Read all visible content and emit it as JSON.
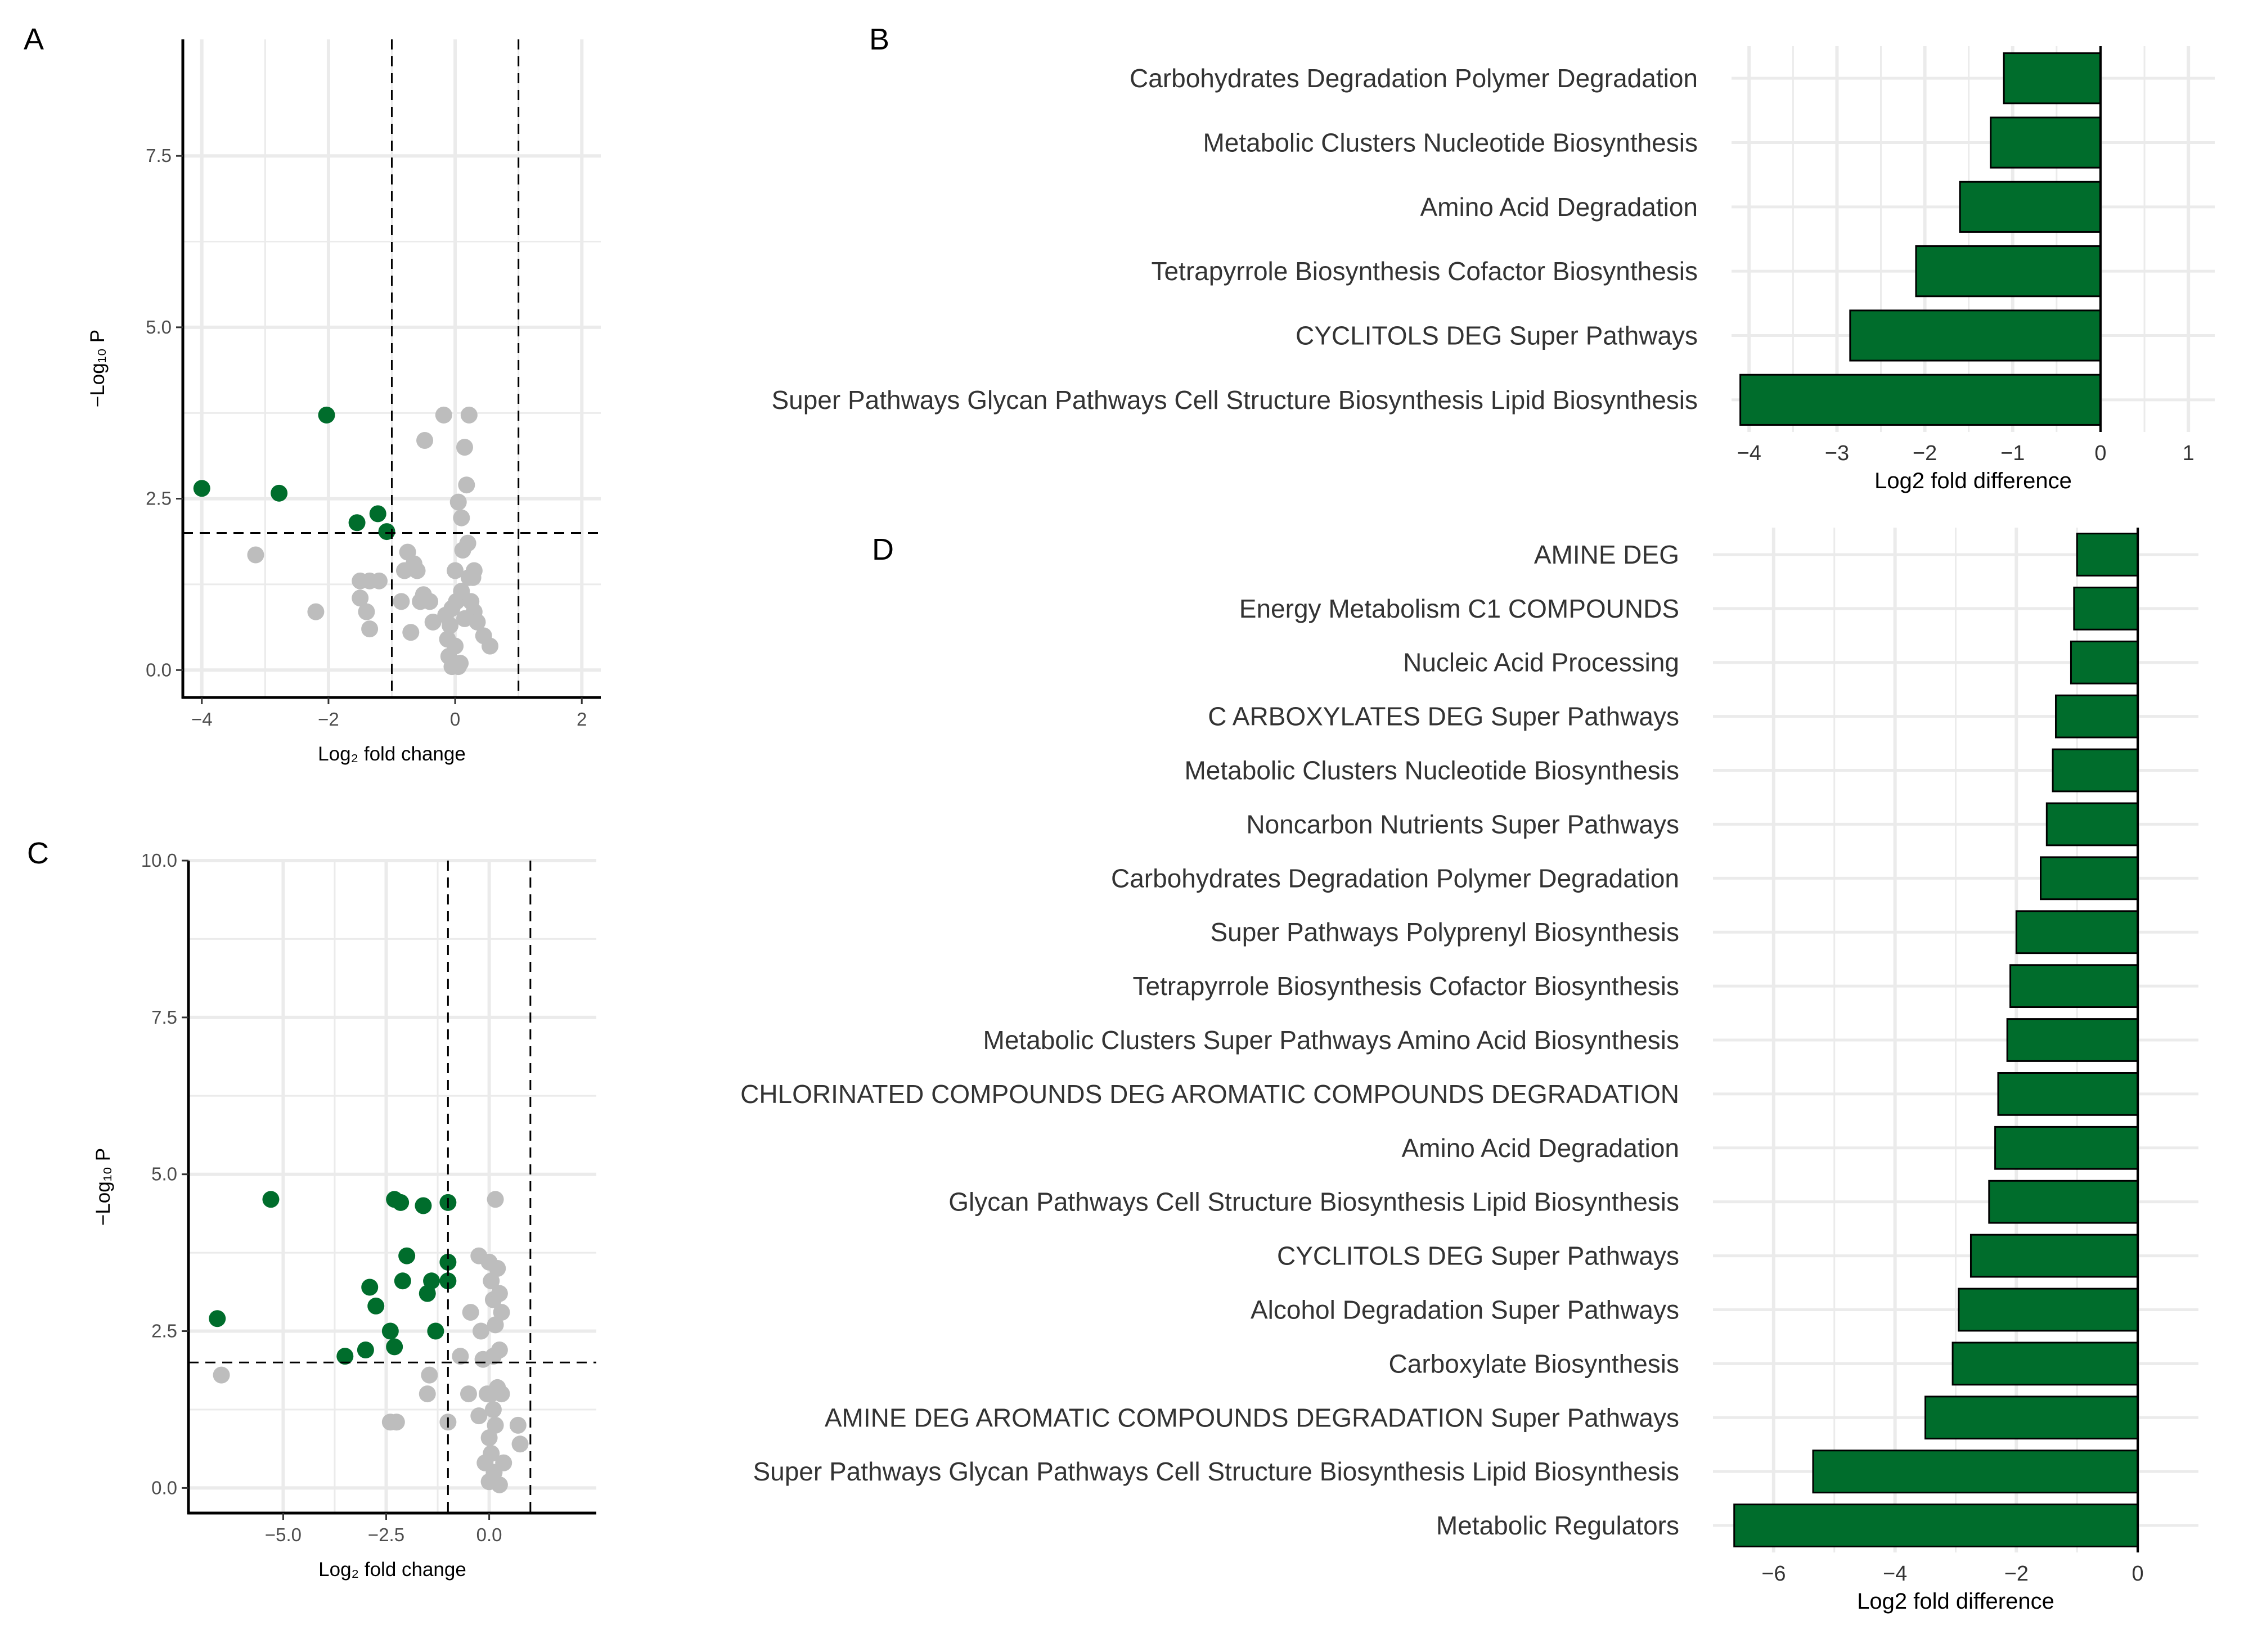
{
  "colors": {
    "significant": "#006d2c",
    "nonsignificant": "#bdbdbd",
    "bar_fill": "#006d2c",
    "bar_stroke": "#000000",
    "grid": "#ebebeb"
  },
  "chart_data": [
    {
      "panel": "A",
      "type": "scatter",
      "xlabel": "Log₂ fold change",
      "ylabel": "−Log₁₀ P",
      "xlim": [
        -4.3,
        2.3
      ],
      "ylim": [
        -0.4,
        9.2
      ],
      "xticks": [
        -4,
        -2,
        0,
        2
      ],
      "xtick_labels": [
        "−4",
        "−2",
        "0",
        "2"
      ],
      "yticks": [
        0,
        2.5,
        5,
        7.5
      ],
      "ytick_labels": [
        "0.0",
        "2.5",
        "5.0",
        "7.5"
      ],
      "thresholds": {
        "x": [
          -1,
          1
        ],
        "y": 2
      },
      "grid": true,
      "series": [
        {
          "role": "significant",
          "points": [
            [
              -4.0,
              2.65
            ],
            [
              -2.78,
              2.58
            ],
            [
              -2.03,
              3.72
            ],
            [
              -1.55,
              2.15
            ],
            [
              -1.22,
              2.28
            ],
            [
              -1.08,
              2.02
            ]
          ]
        },
        {
          "role": "nonsignificant",
          "points": [
            [
              -3.15,
              1.68
            ],
            [
              -2.2,
              0.85
            ],
            [
              -1.5,
              1.3
            ],
            [
              -1.5,
              1.05
            ],
            [
              -1.4,
              0.85
            ],
            [
              -1.35,
              1.3
            ],
            [
              -1.35,
              0.6
            ],
            [
              -1.2,
              1.3
            ],
            [
              -0.85,
              1.0
            ],
            [
              -0.8,
              1.45
            ],
            [
              -0.75,
              1.72
            ],
            [
              -0.7,
              0.55
            ],
            [
              -0.65,
              1.55
            ],
            [
              -0.6,
              1.45
            ],
            [
              -0.55,
              1.0
            ],
            [
              -0.5,
              1.1
            ],
            [
              -0.48,
              3.35
            ],
            [
              -0.4,
              1.0
            ],
            [
              -0.35,
              0.7
            ],
            [
              -0.18,
              3.72
            ],
            [
              -0.15,
              0.8
            ],
            [
              -0.12,
              0.45
            ],
            [
              -0.1,
              0.2
            ],
            [
              -0.08,
              0.65
            ],
            [
              -0.05,
              0.9
            ],
            [
              -0.05,
              0.05
            ],
            [
              0.0,
              0.35
            ],
            [
              0.0,
              1.45
            ],
            [
              0.02,
              1.0
            ],
            [
              0.05,
              2.45
            ],
            [
              0.05,
              0.05
            ],
            [
              0.08,
              0.1
            ],
            [
              0.1,
              2.22
            ],
            [
              0.1,
              1.15
            ],
            [
              0.12,
              1.75
            ],
            [
              0.15,
              0.75
            ],
            [
              0.15,
              3.25
            ],
            [
              0.18,
              2.7
            ],
            [
              0.2,
              1.85
            ],
            [
              0.22,
              3.72
            ],
            [
              0.22,
              1.35
            ],
            [
              0.25,
              1.0
            ],
            [
              0.28,
              1.35
            ],
            [
              0.3,
              1.45
            ],
            [
              0.3,
              0.85
            ],
            [
              0.35,
              0.7
            ],
            [
              0.45,
              0.5
            ],
            [
              0.55,
              0.35
            ]
          ]
        }
      ]
    },
    {
      "panel": "B",
      "type": "bar",
      "orientation": "horizontal",
      "xlabel": "Log2 fold difference",
      "xlim": [
        -4.2,
        1.3
      ],
      "xticks": [
        -4,
        -3,
        -2,
        -1,
        0,
        1
      ],
      "xtick_labels": [
        "−4",
        "−3",
        "−2",
        "−1",
        "0",
        "1"
      ],
      "grid": true,
      "categories": [
        "Carbohydrates Degradation Polymer Degradation",
        "Metabolic Clusters Nucleotide Biosynthesis",
        "Amino Acid Degradation",
        "Tetrapyrrole Biosynthesis Cofactor Biosynthesis",
        "CYCLITOLS DEG Super Pathways",
        "Super Pathways Glycan Pathways Cell Structure Biosynthesis Lipid Biosynthesis"
      ],
      "values": [
        -1.1,
        -1.25,
        -1.6,
        -2.1,
        -2.85,
        -4.1
      ]
    },
    {
      "panel": "C",
      "type": "scatter",
      "xlabel": "Log₂ fold change",
      "ylabel": "−Log₁₀ P",
      "xlim": [
        -7.3,
        2.6
      ],
      "ylim": [
        -0.4,
        10.0
      ],
      "xticks": [
        -5,
        -2.5,
        0
      ],
      "xtick_labels": [
        "−5.0",
        "−2.5",
        "0.0"
      ],
      "yticks": [
        0,
        2.5,
        5,
        7.5,
        10
      ],
      "ytick_labels": [
        "0.0",
        "2.5",
        "5.0",
        "7.5",
        "10.0"
      ],
      "thresholds": {
        "x": [
          -1,
          1
        ],
        "y": 2
      },
      "grid": true,
      "series": [
        {
          "role": "significant",
          "points": [
            [
              -6.6,
              2.7
            ],
            [
              -5.3,
              4.6
            ],
            [
              -3.5,
              2.1
            ],
            [
              -3.0,
              2.2
            ],
            [
              -2.9,
              3.2
            ],
            [
              -2.75,
              2.9
            ],
            [
              -2.4,
              2.5
            ],
            [
              -2.3,
              2.25
            ],
            [
              -2.3,
              4.6
            ],
            [
              -2.15,
              4.55
            ],
            [
              -2.1,
              3.3
            ],
            [
              -2.0,
              3.7
            ],
            [
              -1.6,
              4.5
            ],
            [
              -1.5,
              3.1
            ],
            [
              -1.4,
              3.3
            ],
            [
              -1.3,
              2.5
            ],
            [
              -1.0,
              4.55
            ],
            [
              -1.0,
              3.6
            ],
            [
              -1.0,
              3.3
            ]
          ]
        },
        {
          "role": "nonsignificant",
          "points": [
            [
              -6.5,
              1.8
            ],
            [
              -2.4,
              1.05
            ],
            [
              -2.25,
              1.05
            ],
            [
              -1.5,
              1.5
            ],
            [
              -1.45,
              1.8
            ],
            [
              -1.0,
              1.05
            ],
            [
              -0.7,
              2.1
            ],
            [
              -0.5,
              1.5
            ],
            [
              -0.45,
              2.8
            ],
            [
              -0.25,
              3.7
            ],
            [
              -0.2,
              2.5
            ],
            [
              -0.25,
              1.15
            ],
            [
              -0.15,
              2.05
            ],
            [
              -0.1,
              0.4
            ],
            [
              -0.05,
              1.5
            ],
            [
              0.0,
              3.6
            ],
            [
              0.0,
              0.8
            ],
            [
              0.0,
              0.1
            ],
            [
              0.05,
              3.3
            ],
            [
              0.05,
              1.5
            ],
            [
              0.05,
              0.55
            ],
            [
              0.1,
              3.0
            ],
            [
              0.1,
              2.1
            ],
            [
              0.1,
              1.25
            ],
            [
              0.12,
              0.25
            ],
            [
              0.15,
              4.6
            ],
            [
              0.15,
              2.6
            ],
            [
              0.15,
              1.0
            ],
            [
              0.2,
              3.5
            ],
            [
              0.2,
              1.6
            ],
            [
              0.25,
              3.1
            ],
            [
              0.25,
              2.2
            ],
            [
              0.25,
              0.05
            ],
            [
              0.3,
              2.8
            ],
            [
              0.3,
              1.5
            ],
            [
              0.35,
              0.4
            ],
            [
              0.7,
              1.0
            ],
            [
              0.75,
              0.7
            ]
          ]
        }
      ]
    },
    {
      "panel": "D",
      "type": "bar",
      "orientation": "horizontal",
      "xlabel": "Log2 fold difference",
      "xlim": [
        -7.0,
        1.0
      ],
      "xticks": [
        -6,
        -4,
        -2,
        0
      ],
      "xtick_labels": [
        "−6",
        "−4",
        "−2",
        "0"
      ],
      "grid": true,
      "categories": [
        "AMINE DEG",
        "Energy Metabolism C1 COMPOUNDS",
        "Nucleic Acid Processing",
        "C ARBOXYLATES DEG Super Pathways",
        "Metabolic Clusters Nucleotide Biosynthesis",
        "Noncarbon Nutrients Super Pathways",
        "Carbohydrates Degradation Polymer Degradation",
        "Super Pathways Polyprenyl Biosynthesis",
        "Tetrapyrrole Biosynthesis Cofactor Biosynthesis",
        "Metabolic Clusters Super Pathways Amino Acid Biosynthesis",
        "CHLORINATED COMPOUNDS DEG AROMATIC COMPOUNDS DEGRADATION",
        "Amino Acid Degradation",
        "Glycan Pathways Cell Structure Biosynthesis Lipid Biosynthesis",
        "CYCLITOLS DEG Super Pathways",
        "Alcohol Degradation Super Pathways",
        "Carboxylate Biosynthesis",
        "AMINE DEG AROMATIC COMPOUNDS DEGRADATION Super Pathways",
        "Super Pathways Glycan Pathways Cell Structure Biosynthesis Lipid Biosynthesis",
        "Metabolic Regulators"
      ],
      "values": [
        -1.0,
        -1.05,
        -1.1,
        -1.35,
        -1.4,
        -1.5,
        -1.6,
        -2.0,
        -2.1,
        -2.15,
        -2.3,
        -2.35,
        -2.45,
        -2.75,
        -2.95,
        -3.05,
        -3.5,
        -5.35,
        -6.65
      ]
    }
  ],
  "panel_letters": {
    "a": "A",
    "b": "B",
    "c": "C",
    "d": "D"
  }
}
